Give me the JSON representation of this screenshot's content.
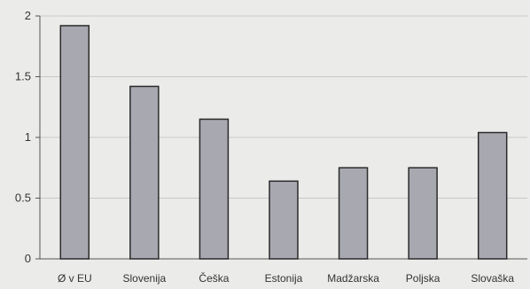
{
  "chart_data": {
    "type": "bar",
    "title": "",
    "xlabel": "",
    "ylabel": "",
    "categories": [
      "Ø v EU",
      "Slovenija",
      "Češka",
      "Estonija",
      "Madžarska",
      "Poljska",
      "Slovaška"
    ],
    "values": [
      1.92,
      1.42,
      1.15,
      0.64,
      0.75,
      0.75,
      1.04
    ],
    "ylim": [
      0,
      2
    ],
    "yticks": [
      0,
      0.5,
      1,
      1.5,
      2
    ],
    "ytick_labels": [
      "0",
      "0.5",
      "1",
      "1.5",
      "2"
    ],
    "grid": true,
    "legend": "none",
    "colors": {
      "bar_fill": "#a8a8b0",
      "bar_stroke": "#2a2a2a",
      "grid": "#c8c8c8",
      "axis": "#555555",
      "background": "#ebebea"
    }
  }
}
